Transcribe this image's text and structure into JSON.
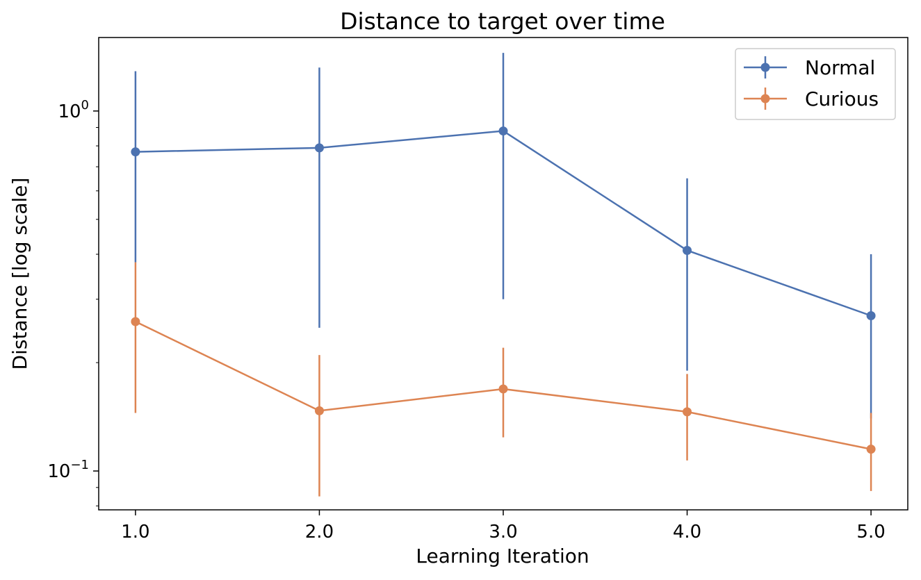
{
  "chart_data": {
    "type": "line",
    "title": "Distance to target over time",
    "xlabel": "Learning Iteration",
    "ylabel": "Distance [log scale]",
    "y_scale": "log",
    "xlim": [
      0.8,
      5.2
    ],
    "ylim": [
      0.078,
      1.6
    ],
    "x_ticks": [
      1.0,
      2.0,
      3.0,
      4.0,
      5.0
    ],
    "x_tick_labels": [
      "1.0",
      "2.0",
      "3.0",
      "4.0",
      "5.0"
    ],
    "y_tick_labels": [
      {
        "value": 1.0,
        "base": "10",
        "exp": "0"
      },
      {
        "value": 0.1,
        "base": "10",
        "exp": "−1"
      }
    ],
    "grid": false,
    "legend_position": "top-right",
    "x": [
      1.0,
      2.0,
      3.0,
      4.0,
      5.0
    ],
    "series": [
      {
        "name": "Normal",
        "color": "#4c72b0",
        "values": [
          0.77,
          0.79,
          0.88,
          0.41,
          0.27
        ],
        "err_low": [
          0.38,
          0.25,
          0.3,
          0.19,
          0.14
        ],
        "err_high": [
          1.29,
          1.32,
          1.45,
          0.65,
          0.4
        ]
      },
      {
        "name": "Curious",
        "color": "#dd8452",
        "values": [
          0.26,
          0.147,
          0.169,
          0.146,
          0.115
        ],
        "err_low": [
          0.145,
          0.085,
          0.124,
          0.107,
          0.088
        ],
        "err_high": [
          0.38,
          0.21,
          0.22,
          0.186,
          0.145
        ]
      }
    ]
  }
}
